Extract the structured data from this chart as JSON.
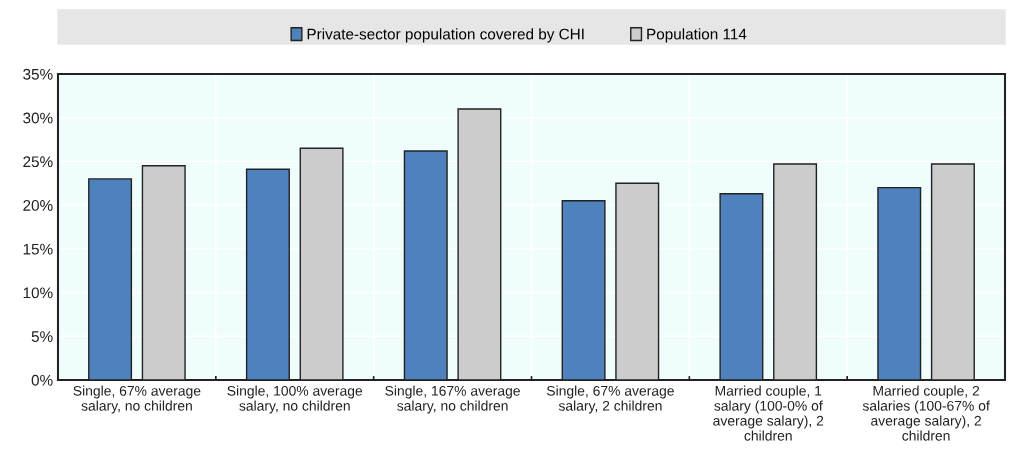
{
  "chart_data": {
    "type": "bar",
    "categories": [
      "Single, 67% average salary, no children",
      "Single, 100% average salary, no children",
      "Single, 167% average salary, no children",
      "Single, 67% average salary, 2 children",
      "Married couple, 1 salary (100-0% of average salary), 2 children",
      "Married couple, 2 salaries (100-67% of average salary), 2 children"
    ],
    "series": [
      {
        "name": "Private-sector population covered by CHI",
        "color": "#4f81bd",
        "values": [
          23.0,
          24.1,
          26.2,
          20.5,
          21.3,
          22.0
        ]
      },
      {
        "name": "Population 114",
        "color": "#cccccc",
        "values": [
          24.5,
          26.5,
          31.0,
          22.5,
          24.7,
          24.7
        ]
      }
    ],
    "ylim": [
      0,
      35
    ],
    "yticks": [
      {
        "value": 0,
        "label": "0%"
      },
      {
        "value": 5,
        "label": "5%"
      },
      {
        "value": 10,
        "label": "10%"
      },
      {
        "value": 15,
        "label": "15%"
      },
      {
        "value": 20,
        "label": "20%"
      },
      {
        "value": 25,
        "label": "25%"
      },
      {
        "value": 30,
        "label": "30%"
      },
      {
        "value": 35,
        "label": "35%"
      }
    ],
    "grid": true,
    "legend": "top"
  }
}
